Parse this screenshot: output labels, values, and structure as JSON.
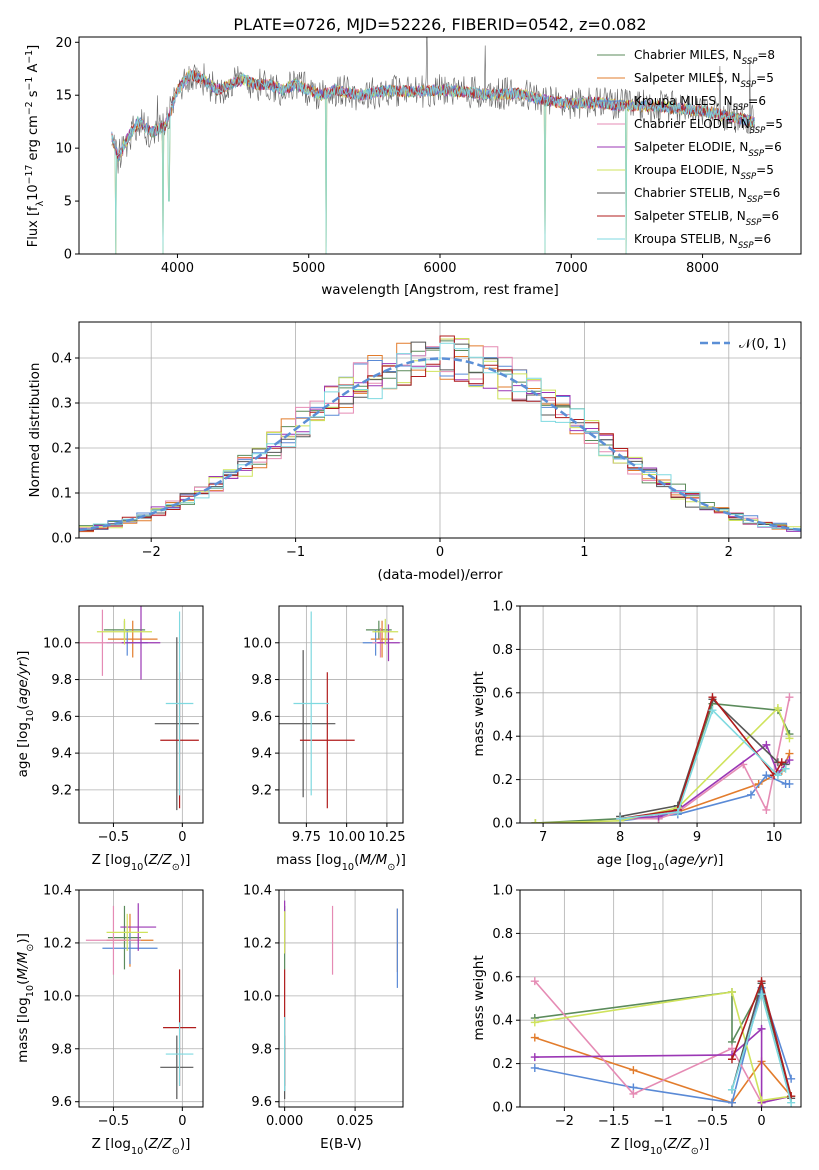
{
  "figure_title": "PLATE=0726, MJD=52226, FIBERID=0542, z=0.082",
  "models": [
    {
      "name": "Chabrier MILES, N_SSP=8",
      "base": "Chabrier MILES, N",
      "sub": "SSP",
      "tail": "=8",
      "color": "#5b8b5b"
    },
    {
      "name": "Salpeter MILES, N_SSP=5",
      "base": "Salpeter MILES, N",
      "sub": "SSP",
      "tail": "=5",
      "color": "#e27c2c"
    },
    {
      "name": "Kroupa MILES, N_SSP=6",
      "base": "Kroupa MILES, N",
      "sub": "SSP",
      "tail": "=6",
      "color": "#5a8ad6"
    },
    {
      "name": "Chabrier ELODIE, N_SSP=5",
      "base": "Chabrier ELODIE, N",
      "sub": "SSP",
      "tail": "=5",
      "color": "#e58bb4"
    },
    {
      "name": "Salpeter ELODIE, N_SSP=6",
      "base": "Salpeter ELODIE, N",
      "sub": "SSP",
      "tail": "=6",
      "color": "#9b37b5"
    },
    {
      "name": "Kroupa ELODIE, N_SSP=5",
      "base": "Kroupa ELODIE, N",
      "sub": "SSP",
      "tail": "=5",
      "color": "#cfe35c"
    },
    {
      "name": "Chabrier STELIB, N_SSP=6",
      "base": "Chabrier STELIB, N",
      "sub": "SSP",
      "tail": "=6",
      "color": "#555555"
    },
    {
      "name": "Salpeter STELIB, N_SSP=6",
      "base": "Salpeter STELIB, N",
      "sub": "SSP",
      "tail": "=6",
      "color": "#b01c1c"
    },
    {
      "name": "Kroupa STELIB, N_SSP=6",
      "base": "Kroupa STELIB, N",
      "sub": "SSP",
      "tail": "=6",
      "color": "#7fd9e0"
    }
  ],
  "chart_data": [
    {
      "id": "spectrum",
      "type": "line",
      "xlabel": "wavelength [Angstrom, rest frame]",
      "ylabel": "Flux [f_λ 10^-17 erg cm^-2 s^-1 A^-1]",
      "xlim": [
        3250,
        8750
      ],
      "ylim": [
        0,
        20.5
      ],
      "xticks": [
        4000,
        5000,
        6000,
        7000,
        8000
      ],
      "yticks": [
        0,
        5,
        10,
        15,
        20
      ],
      "grid": false,
      "legend": "top-right",
      "envelope": {
        "x": [
          3500,
          3550,
          3600,
          3700,
          3800,
          3900,
          3950,
          4000,
          4100,
          4200,
          4300,
          4400,
          4500,
          4600,
          4700,
          4800,
          4900,
          5000,
          5100,
          5200,
          5400,
          5600,
          5800,
          6000,
          6200,
          6400,
          6600,
          6800,
          7000,
          7200,
          7400,
          7600,
          7800,
          8000,
          8200,
          8400
        ],
        "y": [
          11.0,
          9.0,
          10.5,
          12.5,
          11.5,
          12.0,
          13.5,
          15.5,
          17.0,
          16.5,
          15.5,
          16.0,
          16.5,
          16.0,
          16.0,
          15.5,
          16.0,
          15.5,
          15.0,
          15.5,
          15.0,
          15.5,
          15.3,
          15.5,
          15.3,
          15.0,
          15.2,
          14.5,
          14.2,
          14.3,
          14.0,
          14.0,
          13.8,
          13.5,
          13.0,
          12.5
        ]
      },
      "dips": [
        {
          "x": 3530,
          "y": 0
        },
        {
          "x": 3890,
          "y": 0
        },
        {
          "x": 3935,
          "y": 5
        },
        {
          "x": 5130,
          "y": 0
        },
        {
          "x": 6800,
          "y": 0
        },
        {
          "x": 7420,
          "y": 0
        }
      ]
    },
    {
      "id": "residuals",
      "type": "histogram",
      "xlabel": "(data-model)/error",
      "ylabel": "Normed distribution",
      "xlim": [
        -2.5,
        2.5
      ],
      "ylim": [
        0,
        0.48
      ],
      "xticks": [
        -2,
        -1,
        0,
        1,
        2
      ],
      "yticks": [
        0.0,
        0.1,
        0.2,
        0.3,
        0.4
      ],
      "grid": true,
      "legend": "top-right",
      "gaussian_label": "𝒩(0, 1)",
      "gaussian_color": "#5b8fd6",
      "bin_width": 0.1
    },
    {
      "id": "age-vs-Z",
      "type": "errorbar",
      "xlabel": "Z [log10(Z/Z⊙)]",
      "ylabel": "age [log10(age/yr)]",
      "xlim": [
        -0.75,
        0.15
      ],
      "ylim": [
        9.02,
        10.2
      ],
      "xticks": [
        -0.5,
        0.0
      ],
      "yticks": [
        9.2,
        9.4,
        9.6,
        9.8,
        10.0
      ],
      "grid": true,
      "points": [
        {
          "x": -0.42,
          "y": 10.07,
          "xerr": 0.15,
          "yerr": 0.05,
          "model": 0
        },
        {
          "x": -0.36,
          "y": 10.02,
          "xerr": 0.18,
          "yerr": 0.1,
          "model": 1
        },
        {
          "x": -0.4,
          "y": 10.0,
          "xerr": 0.15,
          "yerr": 0.07,
          "model": 2
        },
        {
          "x": -0.58,
          "y": 10.0,
          "xerr": 0.17,
          "yerr": 0.18,
          "model": 3
        },
        {
          "x": -0.3,
          "y": 10.0,
          "xerr": 0.14,
          "yerr": 0.2,
          "model": 4
        },
        {
          "x": -0.42,
          "y": 10.06,
          "xerr": 0.2,
          "yerr": 0.07,
          "model": 5
        },
        {
          "x": -0.04,
          "y": 9.56,
          "xerr": 0.16,
          "yerr": 0.47,
          "model": 6
        },
        {
          "x": -0.02,
          "y": 9.47,
          "xerr": 0.14,
          "yerr": 0.37,
          "model": 7
        },
        {
          "x": -0.02,
          "y": 9.67,
          "xerr": 0.1,
          "yerr": 0.5,
          "model": 8
        }
      ]
    },
    {
      "id": "age-vs-mass",
      "type": "errorbar",
      "xlabel": "mass [log10(M/M⊙)]",
      "ylabel": "",
      "xlim": [
        9.58,
        10.35
      ],
      "ylim": [
        9.02,
        10.2
      ],
      "xticks": [
        9.75,
        10.0,
        10.25
      ],
      "xticklabels": [
        "9.75",
        "10.00",
        "10.25"
      ],
      "yticks": [
        9.2,
        9.4,
        9.6,
        9.8,
        10.0
      ],
      "grid": true,
      "points": [
        {
          "x": 10.2,
          "y": 10.07,
          "xerr": 0.08,
          "yerr": 0.05,
          "model": 0
        },
        {
          "x": 10.22,
          "y": 10.02,
          "xerr": 0.07,
          "yerr": 0.1,
          "model": 1
        },
        {
          "x": 10.18,
          "y": 10.0,
          "xerr": 0.08,
          "yerr": 0.07,
          "model": 2
        },
        {
          "x": 10.21,
          "y": 10.0,
          "xerr": 0.05,
          "yerr": 0.08,
          "model": 3
        },
        {
          "x": 10.26,
          "y": 10.0,
          "xerr": 0.07,
          "yerr": 0.1,
          "model": 4
        },
        {
          "x": 10.24,
          "y": 10.06,
          "xerr": 0.08,
          "yerr": 0.07,
          "model": 5
        },
        {
          "x": 9.73,
          "y": 9.56,
          "xerr": 0.2,
          "yerr": 0.4,
          "model": 6
        },
        {
          "x": 9.88,
          "y": 9.47,
          "xerr": 0.17,
          "yerr": 0.37,
          "model": 7
        },
        {
          "x": 9.78,
          "y": 9.67,
          "xerr": 0.11,
          "yerr": 0.5,
          "model": 8
        }
      ]
    },
    {
      "id": "weight-vs-age",
      "type": "line",
      "xlabel": "age [log10(age/yr)]",
      "ylabel": "mass weight",
      "xlim": [
        6.7,
        10.35
      ],
      "ylim": [
        0,
        1.0
      ],
      "xticks": [
        7,
        8,
        9,
        10
      ],
      "yticks": [
        0.0,
        0.2,
        0.4,
        0.6,
        0.8,
        1.0
      ],
      "grid": true,
      "series": [
        {
          "model": 0,
          "x": [
            6.9,
            8.0,
            8.5,
            8.75,
            9.2,
            10.05,
            10.2
          ],
          "y": [
            0.0,
            0.02,
            0.02,
            0.07,
            0.55,
            0.52,
            0.41
          ]
        },
        {
          "model": 1,
          "x": [
            8.0,
            8.75,
            9.8,
            10.1,
            10.2
          ],
          "y": [
            0.02,
            0.05,
            0.18,
            0.24,
            0.32
          ]
        },
        {
          "model": 2,
          "x": [
            8.0,
            8.75,
            9.7,
            9.9,
            10.15,
            10.2
          ],
          "y": [
            0.01,
            0.04,
            0.13,
            0.22,
            0.18,
            0.18
          ]
        },
        {
          "model": 3,
          "x": [
            8.0,
            8.5,
            8.75,
            9.6,
            9.9,
            10.2
          ],
          "y": [
            0.02,
            0.02,
            0.05,
            0.27,
            0.06,
            0.58
          ]
        },
        {
          "model": 4,
          "x": [
            8.0,
            8.5,
            8.75,
            9.9,
            10.05,
            10.2
          ],
          "y": [
            0.02,
            0.03,
            0.06,
            0.36,
            0.23,
            0.29
          ]
        },
        {
          "model": 5,
          "x": [
            6.9,
            8.0,
            8.75,
            10.05,
            10.2
          ],
          "y": [
            0.0,
            0.01,
            0.07,
            0.53,
            0.39
          ]
        },
        {
          "model": 6,
          "x": [
            8.0,
            8.75,
            9.2,
            10.05,
            10.15
          ],
          "y": [
            0.03,
            0.08,
            0.57,
            0.28,
            0.27
          ]
        },
        {
          "model": 7,
          "x": [
            8.0,
            8.75,
            9.2,
            10.0,
            10.1
          ],
          "y": [
            0.02,
            0.06,
            0.58,
            0.22,
            0.28
          ]
        },
        {
          "model": 8,
          "x": [
            8.0,
            8.75,
            9.2,
            10.05,
            10.15
          ],
          "y": [
            0.02,
            0.05,
            0.52,
            0.22,
            0.25
          ]
        }
      ]
    },
    {
      "id": "mass-vs-Z",
      "type": "errorbar",
      "xlabel": "Z [log10(Z/Z⊙)]",
      "ylabel": "mass [log10(M/M⊙)]",
      "xlim": [
        -0.75,
        0.15
      ],
      "ylim": [
        9.58,
        10.4
      ],
      "xticks": [
        -0.5,
        0.0
      ],
      "yticks": [
        9.6,
        9.8,
        10.0,
        10.2,
        10.4
      ],
      "grid": true,
      "points": [
        {
          "x": -0.42,
          "y": 10.22,
          "xerr": 0.12,
          "yerr": 0.12,
          "model": 0
        },
        {
          "x": -0.38,
          "y": 10.21,
          "xerr": 0.17,
          "yerr": 0.1,
          "model": 1
        },
        {
          "x": -0.38,
          "y": 10.18,
          "xerr": 0.2,
          "yerr": 0.06,
          "model": 2
        },
        {
          "x": -0.5,
          "y": 10.21,
          "xerr": 0.2,
          "yerr": 0.13,
          "model": 3
        },
        {
          "x": -0.32,
          "y": 10.26,
          "xerr": 0.13,
          "yerr": 0.09,
          "model": 4
        },
        {
          "x": -0.4,
          "y": 10.24,
          "xerr": 0.15,
          "yerr": 0.07,
          "model": 5
        },
        {
          "x": -0.04,
          "y": 9.73,
          "xerr": 0.12,
          "yerr": 0.12,
          "model": 6
        },
        {
          "x": -0.02,
          "y": 9.88,
          "xerr": 0.12,
          "yerr": 0.22,
          "model": 7
        },
        {
          "x": -0.02,
          "y": 9.78,
          "xerr": 0.1,
          "yerr": 0.12,
          "model": 8
        }
      ]
    },
    {
      "id": "mass-vs-EBV",
      "type": "errorbar",
      "xlabel": "E(B-V)",
      "ylabel": "",
      "xlim": [
        -0.002,
        0.042
      ],
      "ylim": [
        9.58,
        10.4
      ],
      "xticks": [
        0.0,
        0.025
      ],
      "xticklabels": [
        "0.000",
        "0.025"
      ],
      "yticks": [
        9.6,
        9.8,
        10.0,
        10.2,
        10.4
      ],
      "grid": true,
      "points": [
        {
          "x": 0.0,
          "y": 10.22,
          "xerr": 0,
          "yerr": 0.12,
          "model": 0
        },
        {
          "x": 0.04,
          "y": 10.21,
          "xerr": 0,
          "yerr": 0.12,
          "model": 1
        },
        {
          "x": 0.04,
          "y": 10.18,
          "xerr": 0,
          "yerr": 0.15,
          "model": 2
        },
        {
          "x": 0.017,
          "y": 10.21,
          "xerr": 0,
          "yerr": 0.13,
          "model": 3
        },
        {
          "x": 0.0,
          "y": 10.26,
          "xerr": 0,
          "yerr": 0.1,
          "model": 4
        },
        {
          "x": 0.0,
          "y": 10.24,
          "xerr": 0,
          "yerr": 0.08,
          "model": 5
        },
        {
          "x": 0.0,
          "y": 9.73,
          "xerr": 0,
          "yerr": 0.12,
          "model": 6
        },
        {
          "x": 0.0,
          "y": 9.88,
          "xerr": 0,
          "yerr": 0.22,
          "model": 7
        },
        {
          "x": 0.0,
          "y": 9.78,
          "xerr": 0,
          "yerr": 0.14,
          "model": 8
        }
      ]
    },
    {
      "id": "weight-vs-Z",
      "type": "line",
      "xlabel": "Z [log10(Z/Z⊙)]",
      "ylabel": "mass weight",
      "xlim": [
        -2.45,
        0.4
      ],
      "ylim": [
        0,
        1.0
      ],
      "xticks": [
        -2.0,
        -1.5,
        -1.0,
        -0.5,
        0.0
      ],
      "yticks": [
        0.0,
        0.2,
        0.4,
        0.6,
        0.8,
        1.0
      ],
      "grid": true,
      "series": [
        {
          "model": 0,
          "x": [
            -2.3,
            -0.3,
            -0.3,
            0.0,
            0.3
          ],
          "y": [
            0.41,
            0.53,
            0.3,
            0.55,
            0.05
          ]
        },
        {
          "model": 1,
          "x": [
            -2.3,
            -1.3,
            -0.3,
            0.0,
            0.3
          ],
          "y": [
            0.32,
            0.17,
            0.02,
            0.21,
            0.05
          ]
        },
        {
          "model": 2,
          "x": [
            -2.3,
            -1.3,
            -0.3,
            0.0,
            0.3
          ],
          "y": [
            0.18,
            0.09,
            0.02,
            0.55,
            0.13
          ]
        },
        {
          "model": 3,
          "x": [
            -2.3,
            -1.3,
            -0.3,
            0.0,
            0.3
          ],
          "y": [
            0.58,
            0.06,
            0.27,
            0.02,
            0.05
          ]
        },
        {
          "model": 4,
          "x": [
            -2.3,
            -0.3,
            0.0,
            0.0,
            0.3
          ],
          "y": [
            0.23,
            0.24,
            0.36,
            0.02,
            0.05
          ]
        },
        {
          "model": 5,
          "x": [
            -2.3,
            -0.3,
            0.0,
            0.3
          ],
          "y": [
            0.39,
            0.53,
            0.03,
            0.05
          ]
        },
        {
          "model": 6,
          "x": [
            -0.3,
            0.0,
            0.3
          ],
          "y": [
            0.08,
            0.57,
            0.04
          ]
        },
        {
          "model": 7,
          "x": [
            -0.3,
            0.0,
            0.3
          ],
          "y": [
            0.22,
            0.58,
            0.05
          ]
        },
        {
          "model": 8,
          "x": [
            -0.3,
            0.0,
            0.3
          ],
          "y": [
            0.08,
            0.52,
            0.02
          ]
        }
      ]
    }
  ]
}
